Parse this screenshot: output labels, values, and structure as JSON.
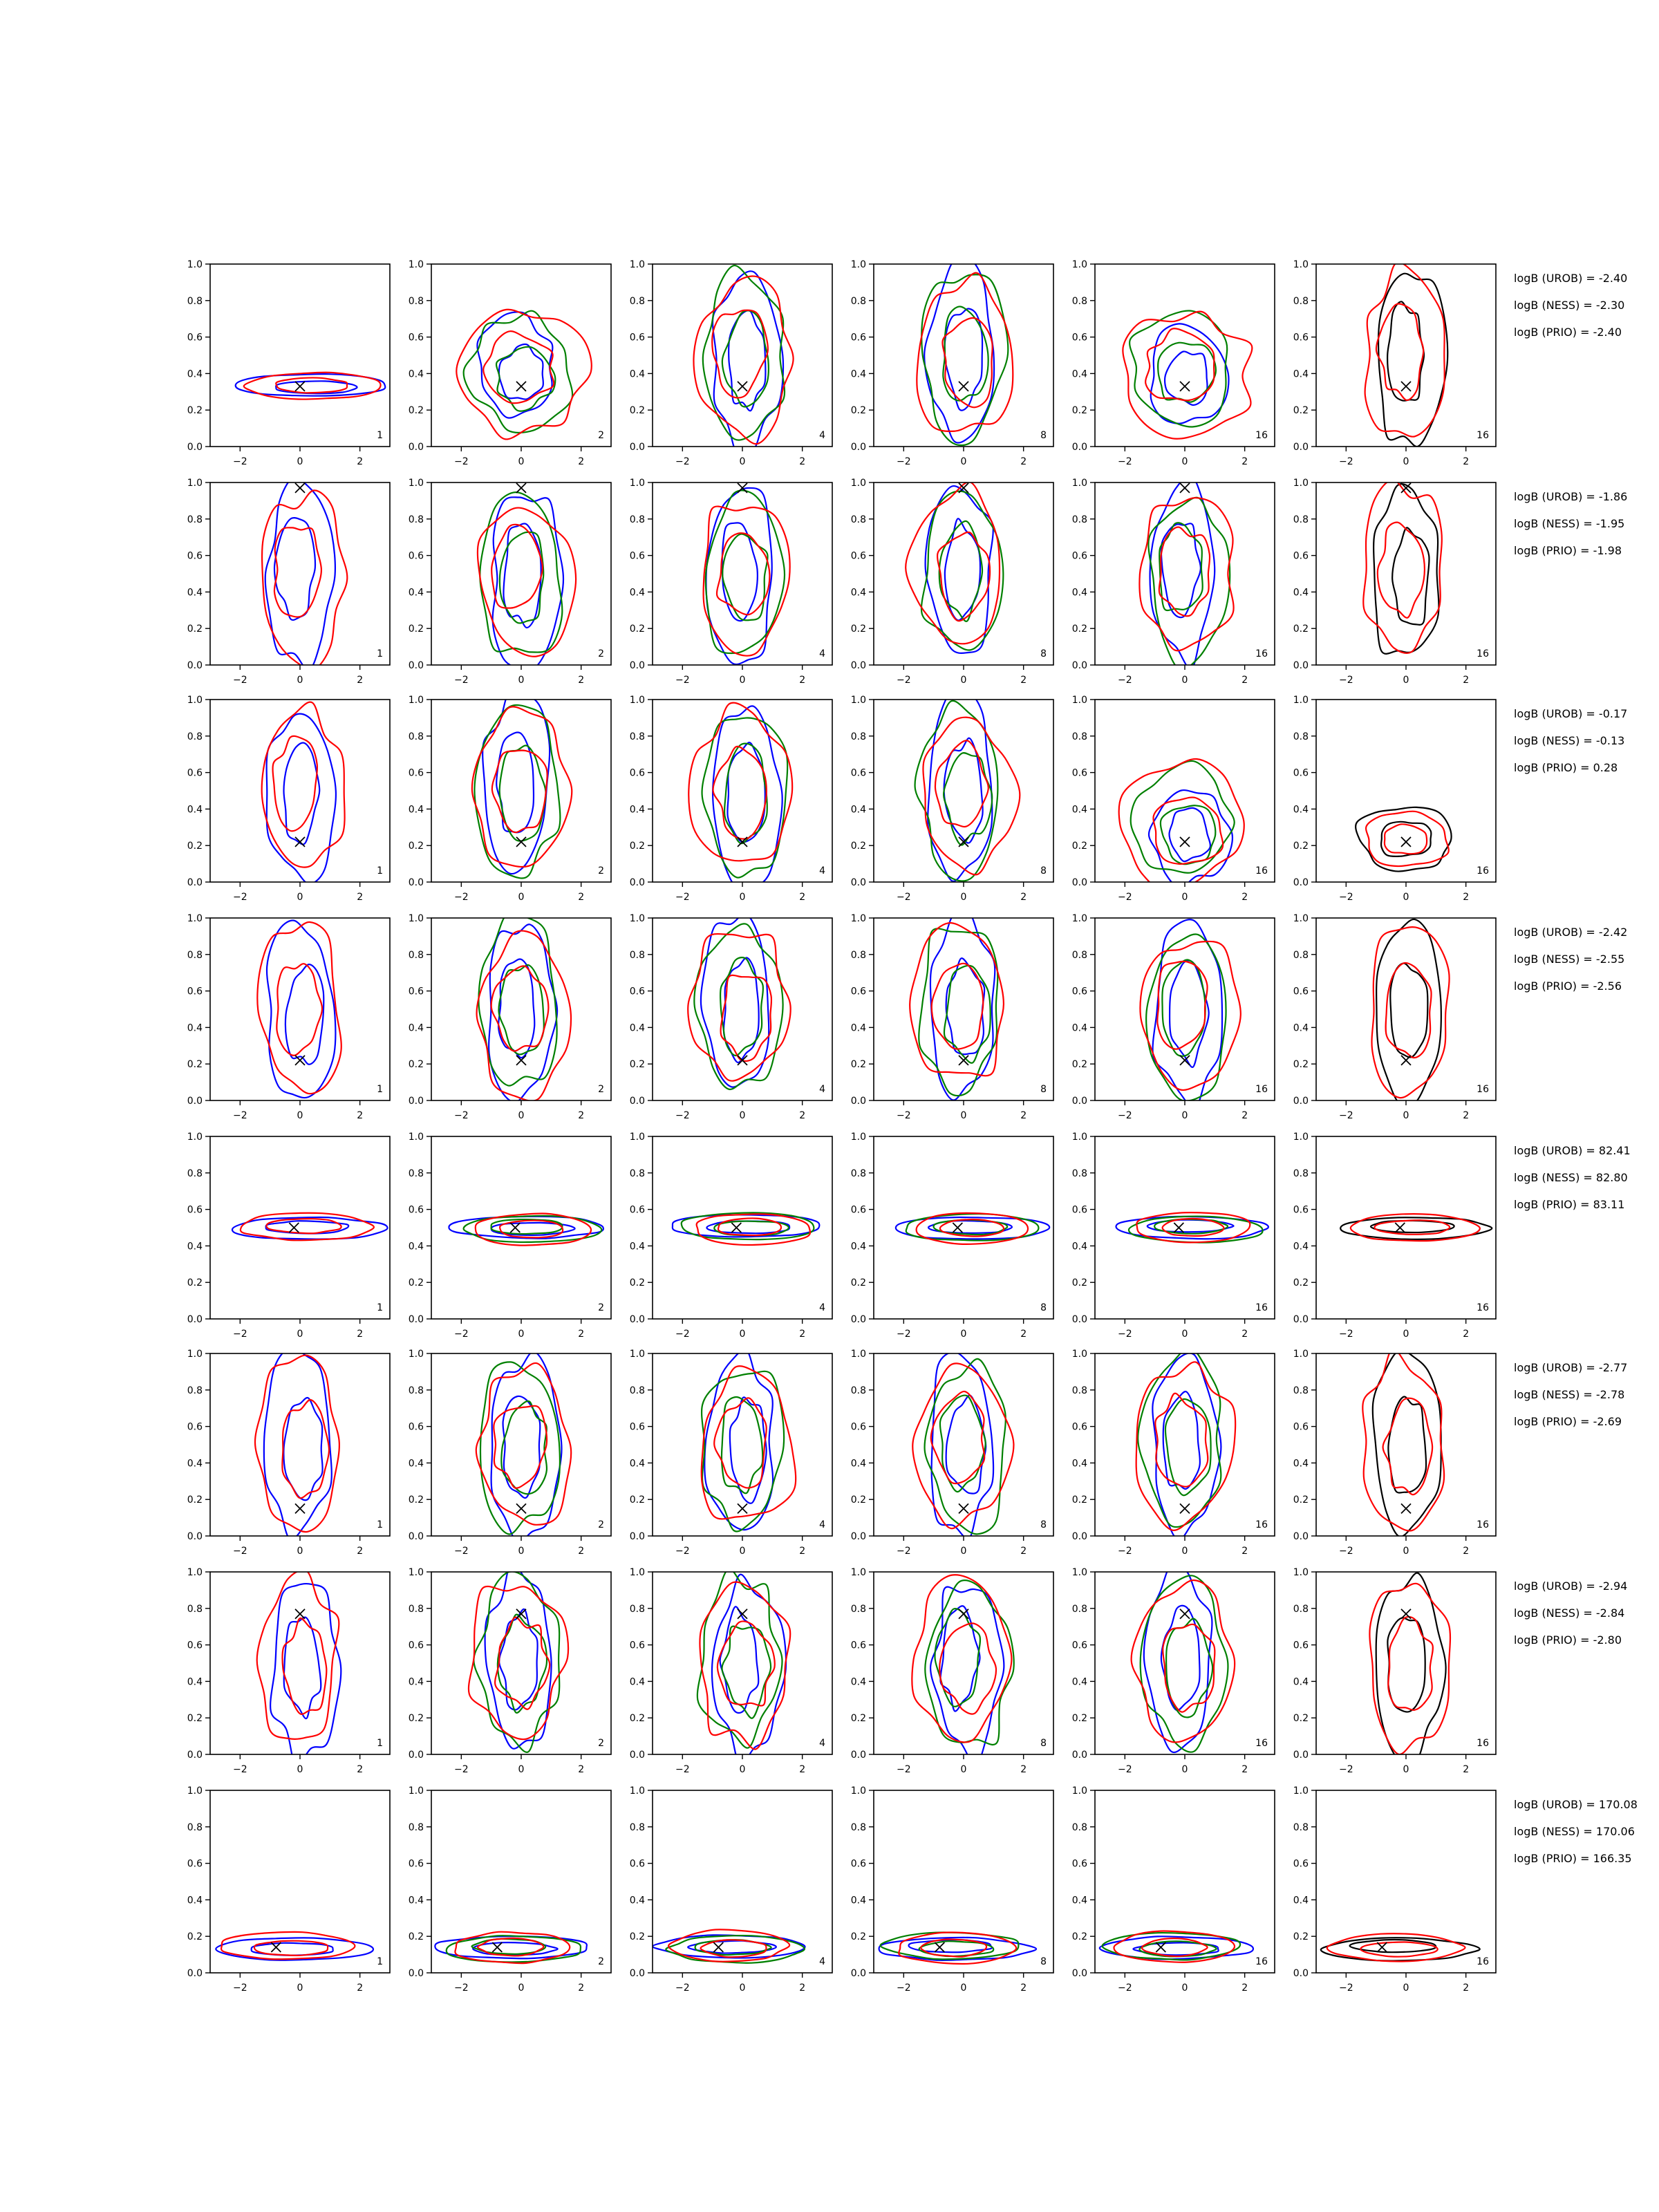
{
  "chart_data": {
    "type": "contour-grid",
    "rows": 8,
    "cols": 6,
    "x_ticks": [
      "−2",
      "0",
      "2"
    ],
    "y_ticks": [
      "0.0",
      "0.2",
      "0.4",
      "0.6",
      "0.8",
      "1.0"
    ],
    "xlim": [
      -3,
      3
    ],
    "ylim": [
      0,
      1
    ],
    "panel_labels": [
      "1",
      "2",
      "4",
      "8",
      "16",
      "16"
    ],
    "colors": {
      "urob": "#0000ff",
      "ness": "#008000",
      "prio": "#ff0000",
      "truth": "#000000",
      "single": "#000000"
    },
    "row_panels": [
      {
        "truth": [
          0,
          0.33
        ],
        "styles": [
          "tight",
          "mid",
          "tall",
          "tall",
          "mid",
          "tall"
        ],
        "logB": {
          "urob": "logB (UROB) = -2.40",
          "ness": "logB (NESS) = -2.30",
          "prio": "logB (PRIO) = -2.40"
        }
      },
      {
        "truth": [
          0,
          0.97
        ],
        "styles": [
          "tall",
          "tall",
          "tall",
          "tall",
          "tall",
          "tall"
        ],
        "logB": {
          "urob": "logB (UROB) = -1.86",
          "ness": "logB (NESS) = -1.95",
          "prio": "logB (PRIO) = -1.98"
        }
      },
      {
        "truth": [
          0,
          0.22
        ],
        "styles": [
          "tall",
          "tall",
          "tall",
          "tall",
          "mid",
          "small"
        ],
        "logB": {
          "urob": "logB (UROB) = -0.17",
          "ness": "logB (NESS) = -0.13",
          "prio": "logB (PRIO) = 0.28"
        }
      },
      {
        "truth": [
          0,
          0.22
        ],
        "styles": [
          "tall",
          "tall",
          "tall",
          "tall",
          "tall",
          "tall"
        ],
        "logB": {
          "urob": "logB (UROB) = -2.42",
          "ness": "logB (NESS) = -2.55",
          "prio": "logB (PRIO) = -2.56"
        }
      },
      {
        "truth": [
          -0.2,
          0.5
        ],
        "styles": [
          "tight",
          "tight",
          "tight",
          "tight",
          "tight",
          "tight"
        ],
        "logB": {
          "urob": "logB (UROB) = 82.41",
          "ness": "logB (NESS) = 82.80",
          "prio": "logB (PRIO) = 83.11"
        }
      },
      {
        "truth": [
          0,
          0.15
        ],
        "styles": [
          "tall",
          "tall",
          "tall",
          "tall",
          "tall",
          "tall"
        ],
        "logB": {
          "urob": "logB (UROB) = -2.77",
          "ness": "logB (NESS) = -2.78",
          "prio": "logB (PRIO) = -2.69"
        }
      },
      {
        "truth": [
          0,
          0.77
        ],
        "styles": [
          "tall",
          "tall",
          "tall",
          "tall",
          "tall",
          "tall"
        ],
        "logB": {
          "urob": "logB (UROB) = -2.94",
          "ness": "logB (NESS) = -2.84",
          "prio": "logB (PRIO) = -2.80"
        }
      },
      {
        "truth": [
          -0.8,
          0.14
        ],
        "styles": [
          "tight",
          "tight",
          "tight",
          "tight",
          "tight",
          "tight"
        ],
        "logB": {
          "urob": "logB (UROB) = 170.08",
          "ness": "logB (NESS) = 170.06",
          "prio": "logB (PRIO) = 166.35"
        }
      }
    ]
  }
}
